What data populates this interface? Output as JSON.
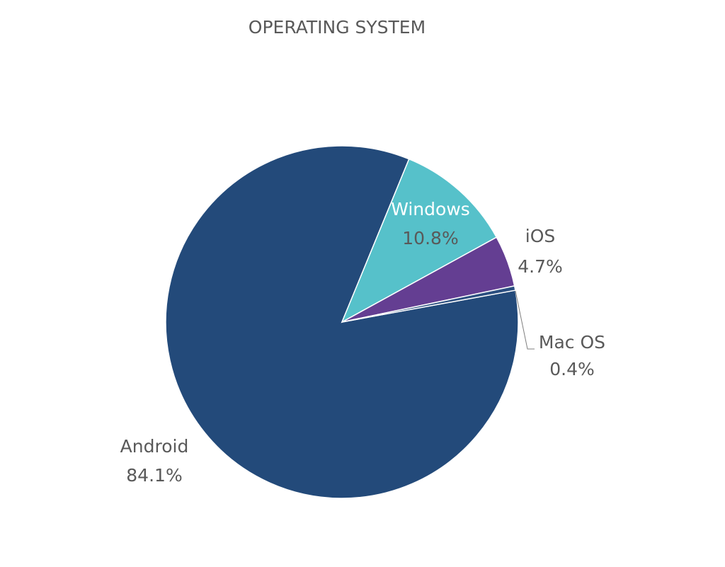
{
  "chart_data": {
    "type": "pie",
    "title": "OPERATING SYSTEM",
    "categories": [
      "Android",
      "Windows",
      "iOS",
      "Mac OS"
    ],
    "values": [
      84.1,
      10.8,
      4.7,
      0.4
    ],
    "value_labels": [
      "84.1%",
      "10.8%",
      "4.7%",
      "0.4%"
    ],
    "colors": [
      "#234a7a",
      "#56c1ca",
      "#643e92",
      "#2b4f80"
    ]
  }
}
